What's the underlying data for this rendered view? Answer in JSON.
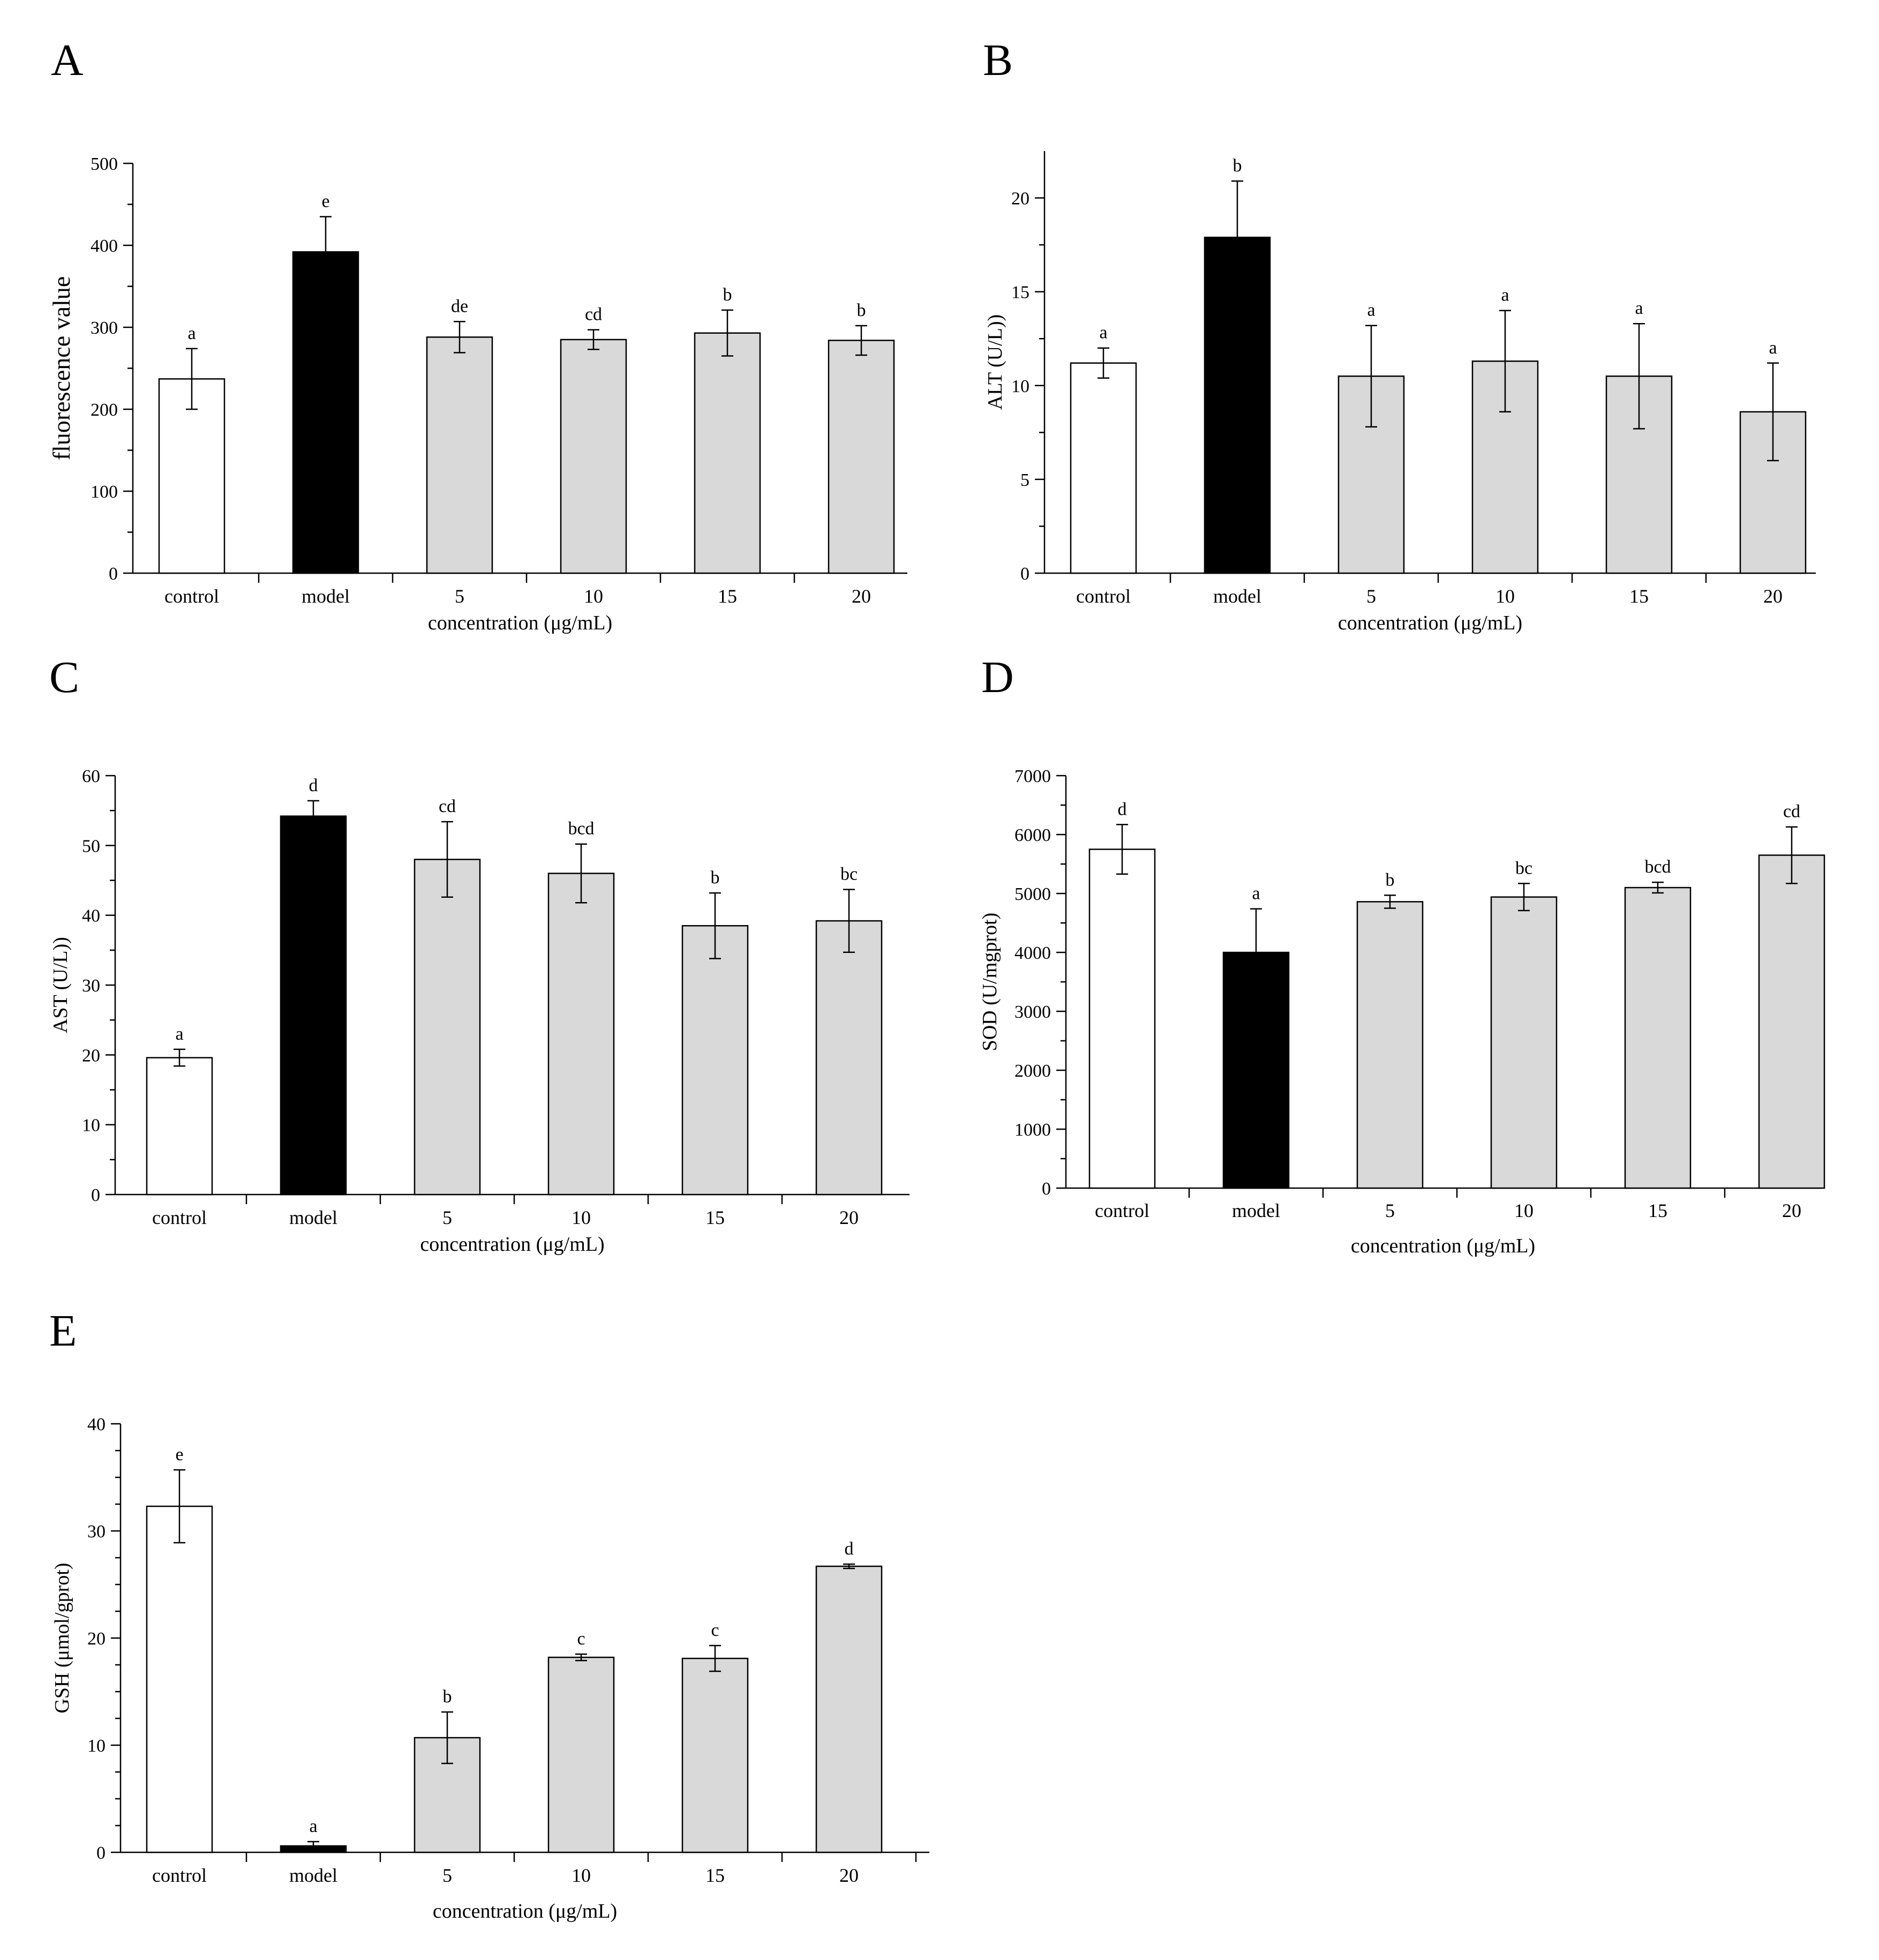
{
  "panels": [
    {
      "letter": "A",
      "chart_data": {
        "type": "bar",
        "categories": [
          "control",
          "model",
          "5",
          "10",
          "15",
          "20"
        ],
        "values": [
          237,
          392,
          288,
          285,
          293,
          284
        ],
        "errors": [
          37,
          43,
          19,
          12,
          28,
          18
        ],
        "sig_letters": [
          "a",
          "e",
          "de",
          "cd",
          "b",
          "b"
        ],
        "fill_colors": [
          "#ffffff",
          "#000000",
          "#d9d9d9",
          "#d9d9d9",
          "#d9d9d9",
          "#d9d9d9"
        ],
        "ylabel": "fluorescence value",
        "xlabel": "concentration (μg/mL)",
        "ylim": [
          0,
          500
        ],
        "yticks": [
          0,
          100,
          200,
          300,
          400,
          500
        ],
        "ytick_labels": [
          "0",
          "100",
          "200",
          "300",
          "400",
          "500"
        ]
      }
    },
    {
      "letter": "B",
      "chart_data": {
        "type": "bar",
        "categories": [
          "control",
          "model",
          "5",
          "10",
          "15",
          "20"
        ],
        "values": [
          11.2,
          17.9,
          10.5,
          11.3,
          10.5,
          8.6
        ],
        "errors": [
          0.8,
          3.0,
          2.7,
          2.7,
          2.8,
          2.6
        ],
        "sig_letters": [
          "a",
          "b",
          "a",
          "a",
          "a",
          "a"
        ],
        "fill_colors": [
          "#ffffff",
          "#000000",
          "#d9d9d9",
          "#d9d9d9",
          "#d9d9d9",
          "#d9d9d9"
        ],
        "ylabel": "ALT (U/L))",
        "xlabel": "concentration (μg/mL)",
        "ylim": [
          0,
          22.5
        ],
        "yticks": [
          0,
          5,
          10,
          15,
          20
        ],
        "ytick_labels": [
          "0",
          "5",
          "10",
          "15",
          "20"
        ]
      }
    },
    {
      "letter": "C",
      "chart_data": {
        "type": "bar",
        "categories": [
          "control",
          "model",
          "5",
          "10",
          "15",
          "20"
        ],
        "values": [
          19.6,
          54.2,
          48.0,
          46.0,
          38.5,
          39.2
        ],
        "errors": [
          1.2,
          2.2,
          5.4,
          4.2,
          4.7,
          4.5
        ],
        "sig_letters": [
          "a",
          "d",
          "cd",
          "bcd",
          "b",
          "bc"
        ],
        "fill_colors": [
          "#ffffff",
          "#000000",
          "#d9d9d9",
          "#d9d9d9",
          "#d9d9d9",
          "#d9d9d9"
        ],
        "ylabel": "AST (U/L))",
        "xlabel": "concentration (μg/mL)",
        "ylim": [
          0,
          60
        ],
        "yticks": [
          0,
          10,
          20,
          30,
          40,
          50,
          60
        ],
        "ytick_labels": [
          "0",
          "10",
          "20",
          "30",
          "40",
          "50",
          "60"
        ]
      }
    },
    {
      "letter": "D",
      "chart_data": {
        "type": "bar",
        "categories": [
          "control",
          "model",
          "5",
          "10",
          "15",
          "20"
        ],
        "values": [
          5750,
          4000,
          4860,
          4940,
          5100,
          5650
        ],
        "errors": [
          420,
          740,
          110,
          230,
          90,
          480
        ],
        "sig_letters": [
          "d",
          "a",
          "b",
          "bc",
          "bcd",
          "cd"
        ],
        "fill_colors": [
          "#ffffff",
          "#000000",
          "#d9d9d9",
          "#d9d9d9",
          "#d9d9d9",
          "#d9d9d9"
        ],
        "ylabel": "SOD (U/mgprot)",
        "xlabel": "concentration (μg/mL)",
        "ylim": [
          0,
          7000
        ],
        "yticks": [
          0,
          1000,
          2000,
          3000,
          4000,
          5000,
          6000,
          7000
        ],
        "ytick_labels": [
          "0",
          "1000",
          "2000",
          "3000",
          "4000",
          "5000",
          "6000",
          "7000"
        ]
      }
    },
    {
      "letter": "E",
      "chart_data": {
        "type": "bar",
        "categories": [
          "control",
          "model",
          "5",
          "10",
          "15",
          "20"
        ],
        "values": [
          32.3,
          0.6,
          10.7,
          18.2,
          18.1,
          26.7
        ],
        "errors": [
          3.4,
          0.4,
          2.4,
          0.3,
          1.2,
          0.2
        ],
        "sig_letters": [
          "e",
          "a",
          "b",
          "c",
          "c",
          "d"
        ],
        "fill_colors": [
          "#ffffff",
          "#000000",
          "#d9d9d9",
          "#d9d9d9",
          "#d9d9d9",
          "#d9d9d9"
        ],
        "ylabel": "GSH (μmol/gprot)",
        "xlabel": "concentration (μg/mL)",
        "ylim": [
          0,
          40
        ],
        "yticks": [
          0,
          10,
          20,
          30,
          40
        ],
        "ytick_labels": [
          "0",
          "10",
          "20",
          "30",
          "40"
        ]
      }
    }
  ]
}
